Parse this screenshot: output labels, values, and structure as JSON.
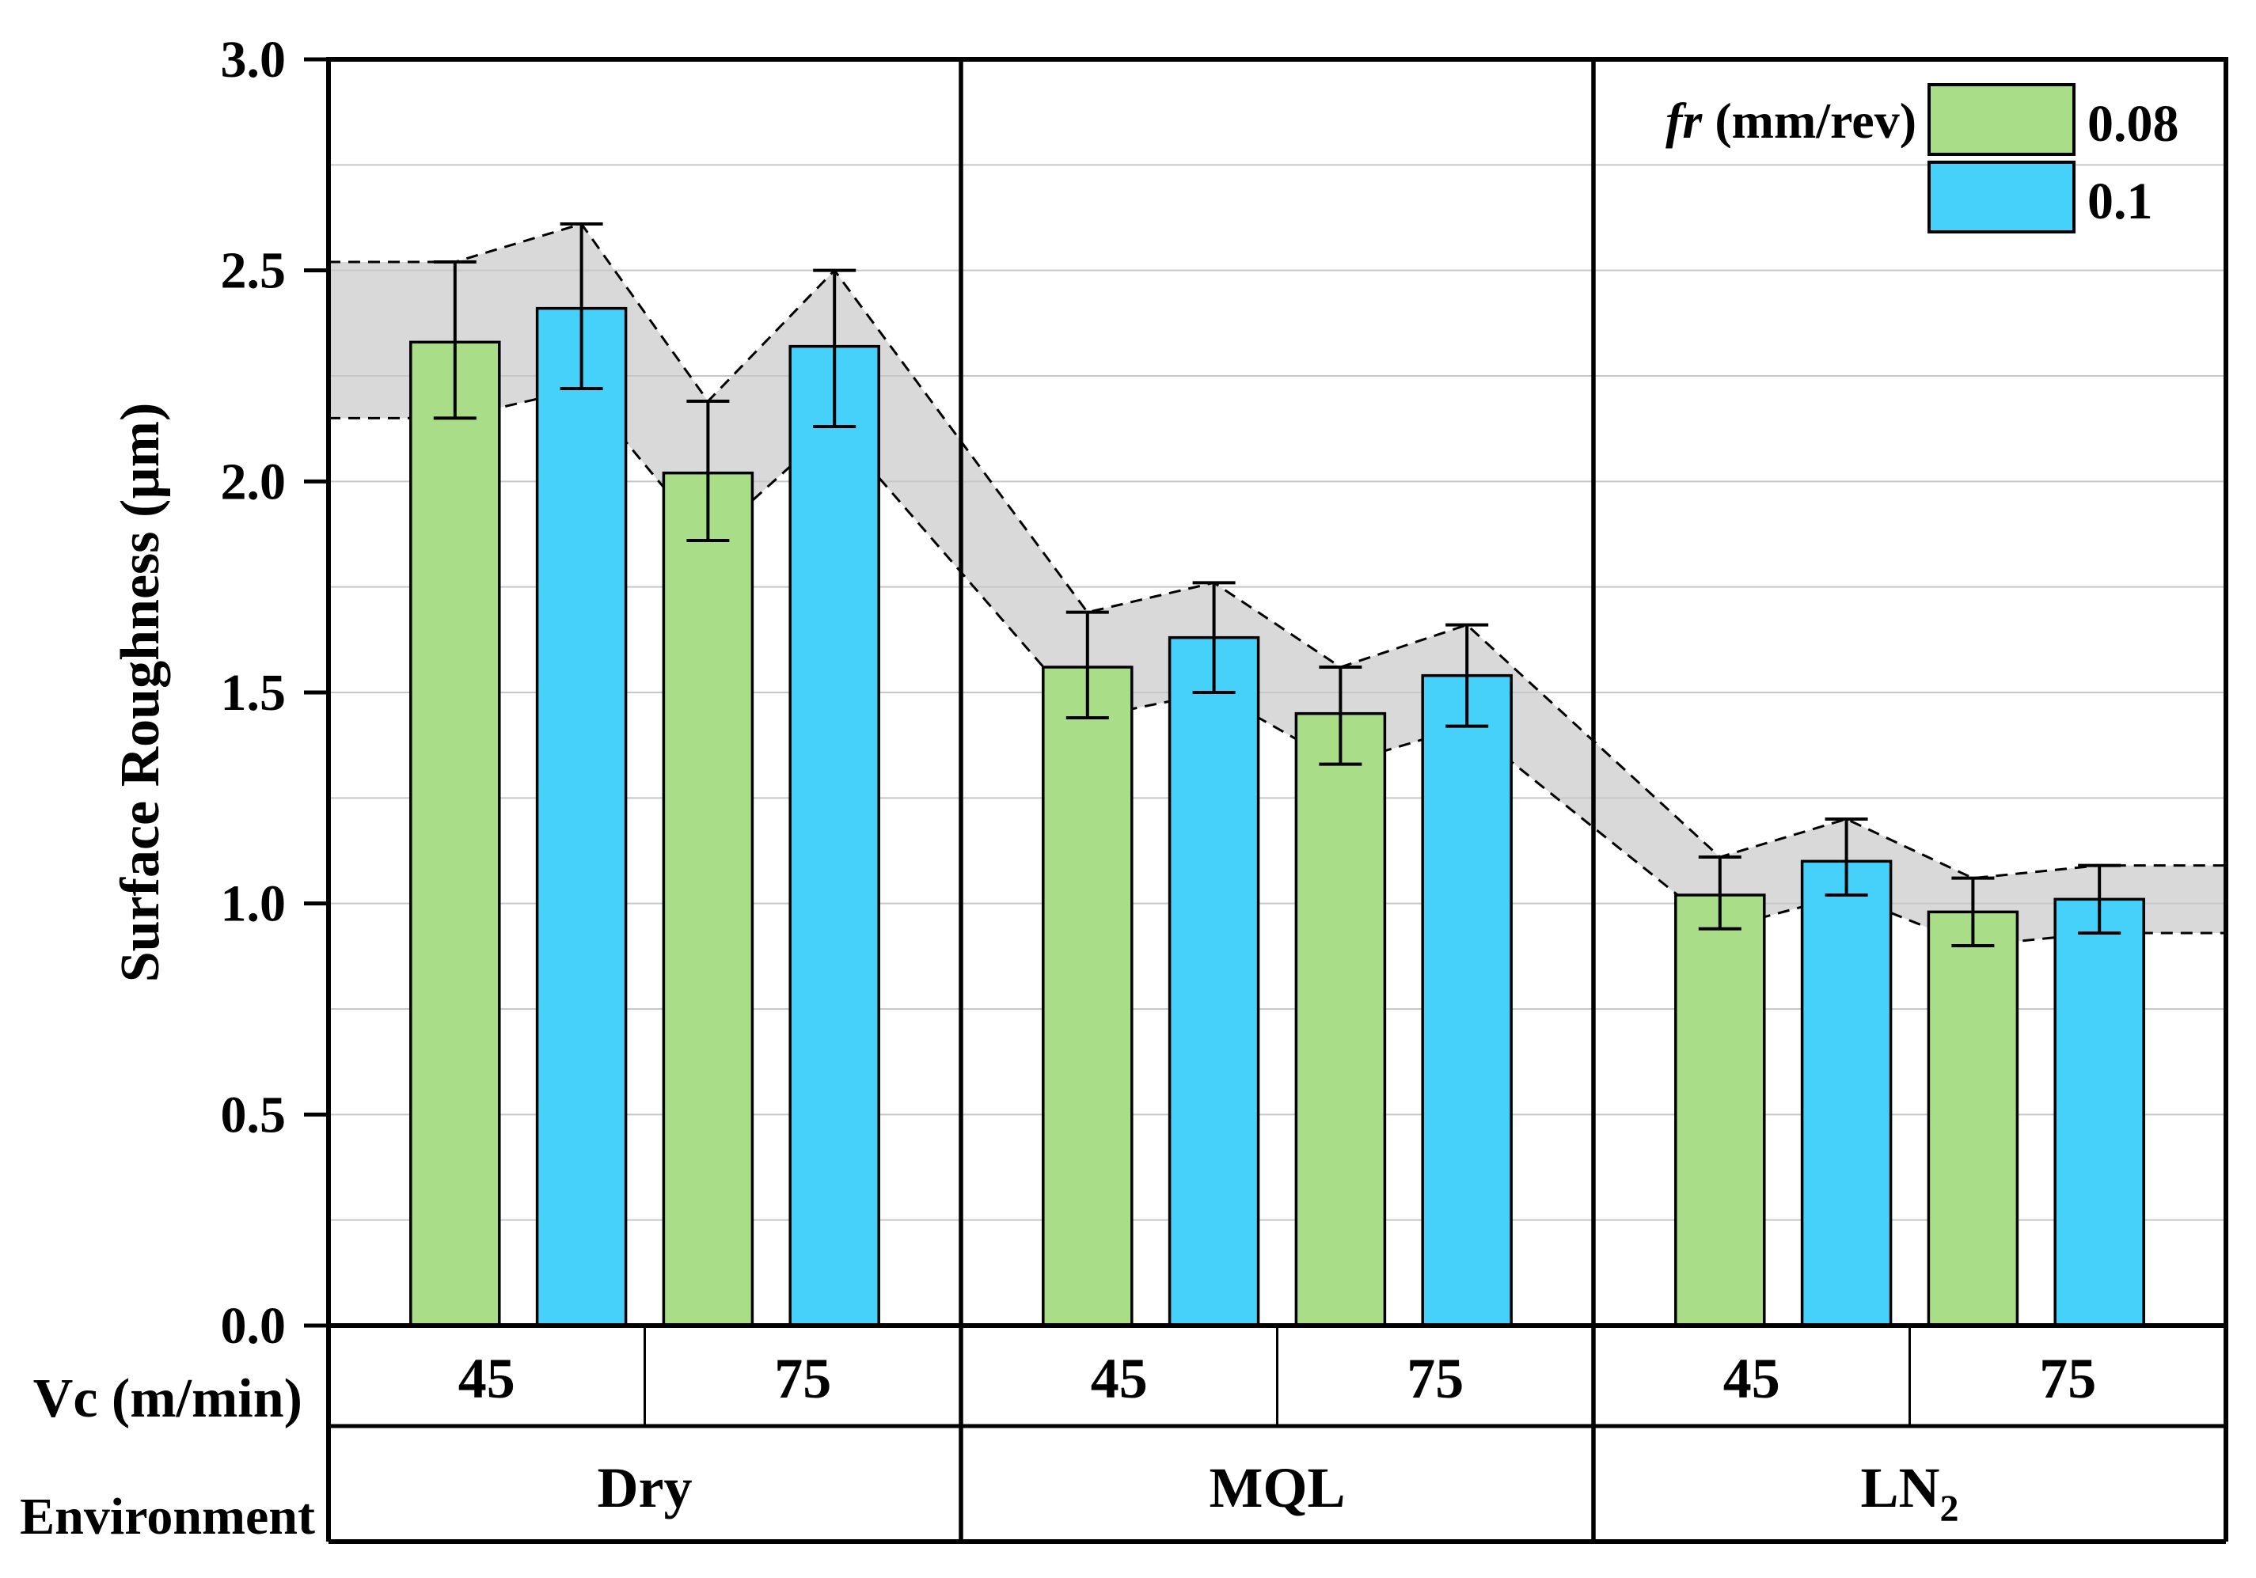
{
  "chart_data": {
    "type": "bar",
    "title": "",
    "ylabel": "Surface Roughness (µm)",
    "ylim": [
      0.0,
      3.0
    ],
    "yticks": [
      0.0,
      0.5,
      1.0,
      1.5,
      2.0,
      2.5,
      3.0
    ],
    "ytick_labels": [
      "0.0",
      "0.5",
      "1.0",
      "1.5",
      "2.0",
      "2.5",
      "3.0"
    ],
    "grid_step": 0.25,
    "grid": "on",
    "grid_color": "#c7c7c7",
    "axis_color": "#000000",
    "legend": {
      "position": "top-right",
      "title_italic": "fr",
      "title_rest": " (mm/rev)",
      "entries": [
        {
          "label": "0.08",
          "color": "#a9dd87"
        },
        {
          "label": "0.1",
          "color": "#45d1fa"
        }
      ]
    },
    "band": {
      "fill": "#d9d9d9",
      "outline_color": "#000000",
      "outline_style": "dashed",
      "meaning": "ribbon connecting error-bar extremes across all bars"
    },
    "x_table": {
      "row1_header": "Vc (m/min)",
      "row2_header": "Environment"
    },
    "groups": [
      {
        "environment": "Dry",
        "env_sub": "",
        "speeds": [
          {
            "vc": "45",
            "bars": [
              {
                "fr": "0.08",
                "value": 2.33,
                "err_up": 0.19,
                "err_down": 0.18
              },
              {
                "fr": "0.1",
                "value": 2.41,
                "err_up": 0.2,
                "err_down": 0.19
              }
            ]
          },
          {
            "vc": "75",
            "bars": [
              {
                "fr": "0.08",
                "value": 2.02,
                "err_up": 0.17,
                "err_down": 0.16
              },
              {
                "fr": "0.1",
                "value": 2.32,
                "err_up": 0.18,
                "err_down": 0.19
              }
            ]
          }
        ]
      },
      {
        "environment": "MQL",
        "env_sub": "",
        "speeds": [
          {
            "vc": "45",
            "bars": [
              {
                "fr": "0.08",
                "value": 1.56,
                "err_up": 0.13,
                "err_down": 0.12
              },
              {
                "fr": "0.1",
                "value": 1.63,
                "err_up": 0.13,
                "err_down": 0.13
              }
            ]
          },
          {
            "vc": "75",
            "bars": [
              {
                "fr": "0.08",
                "value": 1.45,
                "err_up": 0.11,
                "err_down": 0.12
              },
              {
                "fr": "0.1",
                "value": 1.54,
                "err_up": 0.12,
                "err_down": 0.12
              }
            ]
          }
        ]
      },
      {
        "environment": "LN",
        "env_sub": "2",
        "speeds": [
          {
            "vc": "45",
            "bars": [
              {
                "fr": "0.08",
                "value": 1.02,
                "err_up": 0.09,
                "err_down": 0.08
              },
              {
                "fr": "0.1",
                "value": 1.1,
                "err_up": 0.1,
                "err_down": 0.08
              }
            ]
          },
          {
            "vc": "75",
            "bars": [
              {
                "fr": "0.08",
                "value": 0.98,
                "err_up": 0.08,
                "err_down": 0.08
              },
              {
                "fr": "0.1",
                "value": 1.01,
                "err_up": 0.08,
                "err_down": 0.08
              }
            ]
          }
        ]
      }
    ]
  }
}
